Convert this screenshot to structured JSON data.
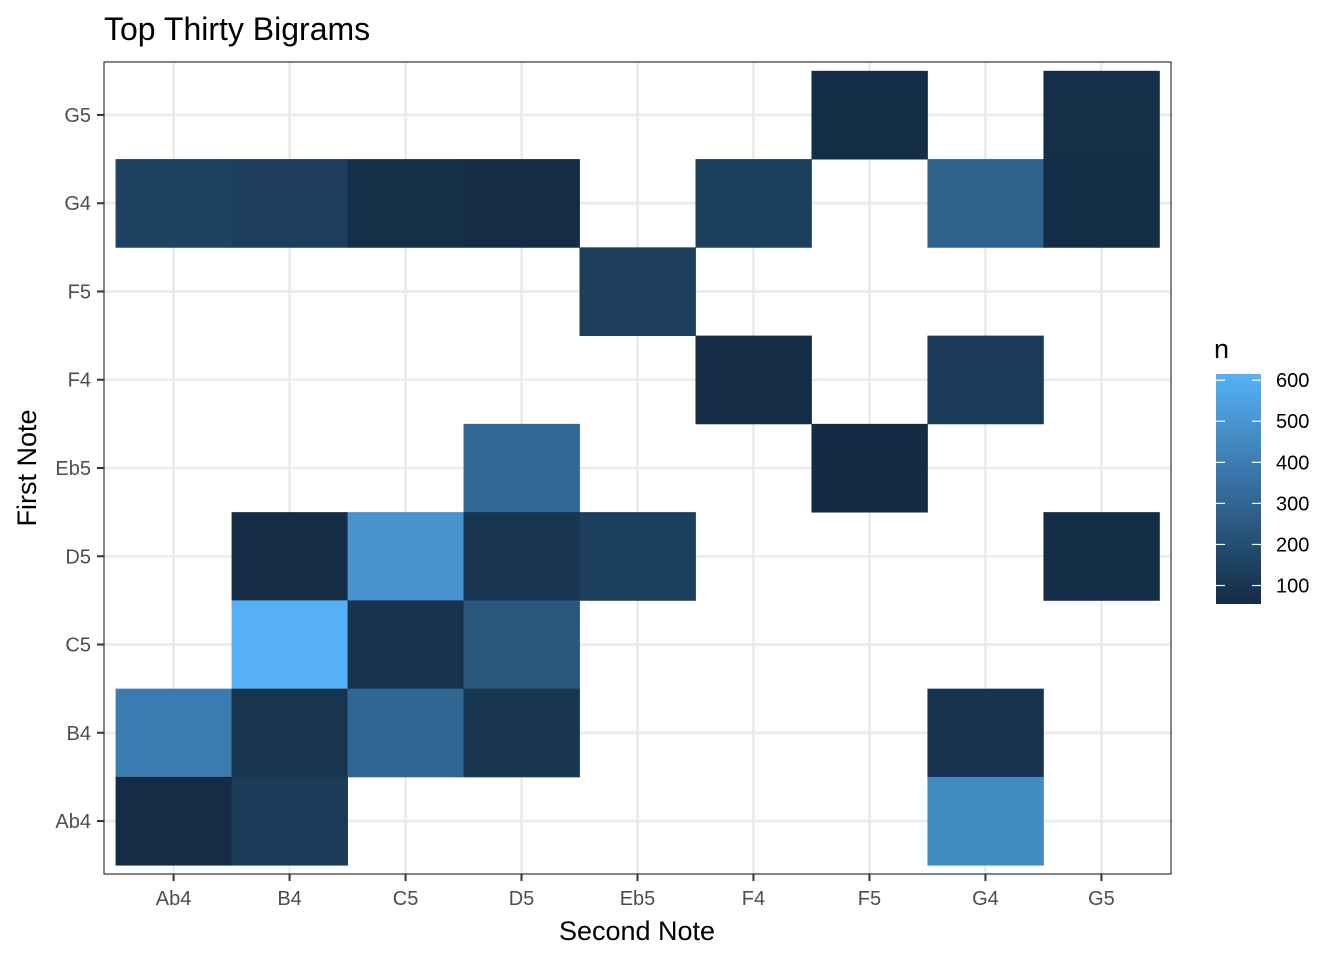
{
  "chart_data": {
    "type": "heatmap",
    "title": "Top Thirty Bigrams",
    "xlabel": "Second Note",
    "ylabel": "First Note",
    "x_categories": [
      "Ab4",
      "B4",
      "C5",
      "D5",
      "Eb5",
      "F4",
      "F5",
      "G4",
      "G5"
    ],
    "y_categories": [
      "Ab4",
      "B4",
      "C5",
      "D5",
      "Eb5",
      "F4",
      "F5",
      "G4",
      "G5"
    ],
    "legend": {
      "title": "n",
      "ticks": [
        100,
        200,
        300,
        400,
        500,
        600
      ],
      "min": 55,
      "max": 615,
      "low_color": "#132B43",
      "high_color": "#56B1F7",
      "position": "right"
    },
    "grid": true,
    "cells": [
      {
        "first": "G5",
        "second": "F5",
        "n": 65
      },
      {
        "first": "G5",
        "second": "G5",
        "n": 70
      },
      {
        "first": "G4",
        "second": "Ab4",
        "n": 150
      },
      {
        "first": "G4",
        "second": "B4",
        "n": 130
      },
      {
        "first": "G4",
        "second": "C5",
        "n": 70
      },
      {
        "first": "G4",
        "second": "D5",
        "n": 60
      },
      {
        "first": "G4",
        "second": "F4",
        "n": 140
      },
      {
        "first": "G4",
        "second": "G4",
        "n": 280
      },
      {
        "first": "G4",
        "second": "G5",
        "n": 65
      },
      {
        "first": "F5",
        "second": "Eb5",
        "n": 130
      },
      {
        "first": "F4",
        "second": "F4",
        "n": 60
      },
      {
        "first": "F4",
        "second": "G4",
        "n": 120
      },
      {
        "first": "Eb5",
        "second": "D5",
        "n": 310
      },
      {
        "first": "Eb5",
        "second": "F5",
        "n": 55
      },
      {
        "first": "D5",
        "second": "B4",
        "n": 60
      },
      {
        "first": "D5",
        "second": "C5",
        "n": 490
      },
      {
        "first": "D5",
        "second": "D5",
        "n": 100
      },
      {
        "first": "D5",
        "second": "Eb5",
        "n": 140
      },
      {
        "first": "D5",
        "second": "G5",
        "n": 65
      },
      {
        "first": "C5",
        "second": "B4",
        "n": 610
      },
      {
        "first": "C5",
        "second": "C5",
        "n": 90
      },
      {
        "first": "C5",
        "second": "D5",
        "n": 240
      },
      {
        "first": "B4",
        "second": "Ab4",
        "n": 390
      },
      {
        "first": "B4",
        "second": "B4",
        "n": 95
      },
      {
        "first": "B4",
        "second": "C5",
        "n": 300
      },
      {
        "first": "B4",
        "second": "D5",
        "n": 105
      },
      {
        "first": "B4",
        "second": "G4",
        "n": 90
      },
      {
        "first": "Ab4",
        "second": "Ab4",
        "n": 60
      },
      {
        "first": "Ab4",
        "second": "B4",
        "n": 120
      },
      {
        "first": "Ab4",
        "second": "G4",
        "n": 450
      }
    ]
  }
}
